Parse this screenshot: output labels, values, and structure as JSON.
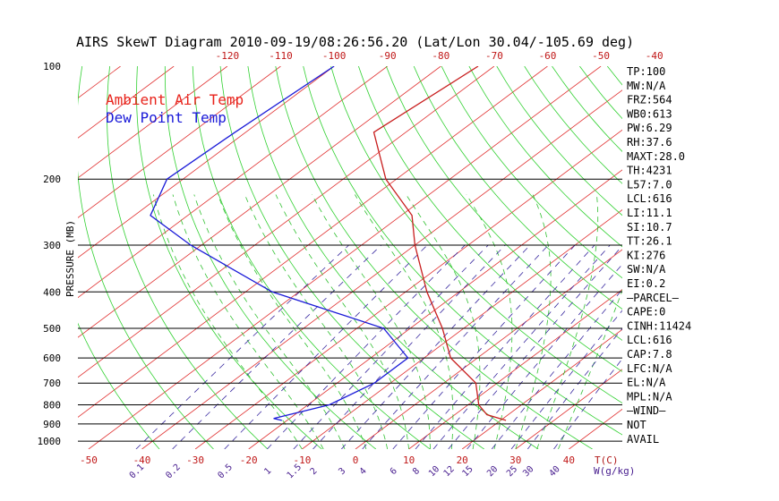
{
  "title": "AIRS SkewT Diagram 2010-09-19/08:26:56.20 (Lat/Lon 30.04/-105.69 deg)",
  "chart_data": {
    "type": "line",
    "title": "AIRS SkewT Diagram 2010-09-19/08:26:56.20 (Lat/Lon 30.04/-105.69 deg)",
    "ylabel": "PRESSURE (MB)",
    "xlabel": "T(C)",
    "mixing_ratio_label": "W(g/kg)",
    "pressure_range_mb": [
      1050,
      100
    ],
    "temp_range_bottom_c": [
      -52,
      50
    ],
    "skew_c_per_decade": 94,
    "pressure_ticks": [
      "100",
      "200",
      "300",
      "400",
      "500",
      "600",
      "700",
      "800",
      "900",
      "1000"
    ],
    "bottom_temp_ticks": [
      "-50",
      "-40",
      "-30",
      "-20",
      "-10",
      "0",
      "10",
      "20",
      "30",
      "40"
    ],
    "top_temp_ticks": [
      "-120",
      "-110",
      "-100",
      "-90",
      "-80",
      "-70",
      "-60",
      "-50",
      "-40"
    ],
    "mixing_ratio_labels": [
      "0.1",
      "0.2",
      "0.5",
      "1",
      "1.5",
      "2",
      "3",
      "4",
      "6",
      "8",
      "10",
      "12",
      "15",
      "20",
      "25",
      "30",
      "40"
    ],
    "legend": [
      {
        "label": "Ambient Air Temp",
        "color": "#e8231b"
      },
      {
        "label": "Dew Point Temp",
        "color": "#1b1bd8"
      }
    ],
    "series": [
      {
        "name": "Ambient Air Temp",
        "color": "#c81e1e",
        "points": [
          {
            "p": 100,
            "t": -73
          },
          {
            "p": 150,
            "t": -76
          },
          {
            "p": 200,
            "t": -62
          },
          {
            "p": 250,
            "t": -48
          },
          {
            "p": 300,
            "t": -40
          },
          {
            "p": 400,
            "t": -26
          },
          {
            "p": 500,
            "t": -14
          },
          {
            "p": 600,
            "t": -5
          },
          {
            "p": 700,
            "t": 6
          },
          {
            "p": 800,
            "t": 12
          },
          {
            "p": 850,
            "t": 16
          },
          {
            "p": 880,
            "t": 21
          }
        ]
      },
      {
        "name": "Dew Point Temp",
        "color": "#1b1bd8",
        "points": [
          {
            "p": 100,
            "t": -100
          },
          {
            "p": 150,
            "t": -102
          },
          {
            "p": 200,
            "t": -103
          },
          {
            "p": 250,
            "t": -97
          },
          {
            "p": 300,
            "t": -82
          },
          {
            "p": 400,
            "t": -55
          },
          {
            "p": 500,
            "t": -25
          },
          {
            "p": 600,
            "t": -13
          },
          {
            "p": 700,
            "t": -13
          },
          {
            "p": 800,
            "t": -16
          },
          {
            "p": 870,
            "t": -23
          },
          {
            "p": 880,
            "t": -21
          }
        ]
      }
    ],
    "indices": [
      "TP:100",
      "MW:N/A",
      "FRZ:564",
      "WB0:613",
      "PW:6.29",
      "RH:37.6",
      "MAXT:28.0",
      "TH:4231",
      "L57:7.0",
      "LCL:616",
      "LI:11.1",
      "SI:10.7",
      "TT:26.1",
      "KI:276",
      "SW:N/A",
      "EI:0.2",
      "—PARCEL—",
      "CAPE:0",
      "CINH:11424",
      "LCL:616",
      "CAP:7.8",
      "LFC:N/A",
      "EL:N/A",
      "MPL:N/A",
      "—WIND—",
      "NOT",
      "AVAIL"
    ],
    "colors": {
      "isotherm": "#e03030",
      "dry_adiabat": "#30d030",
      "moist_adiabat": "#30c030",
      "mixing_ratio": "#3a2aa0",
      "isobar": "#000000",
      "tick_label_red": "#c01818",
      "mixing_label": "#4a2090"
    }
  }
}
